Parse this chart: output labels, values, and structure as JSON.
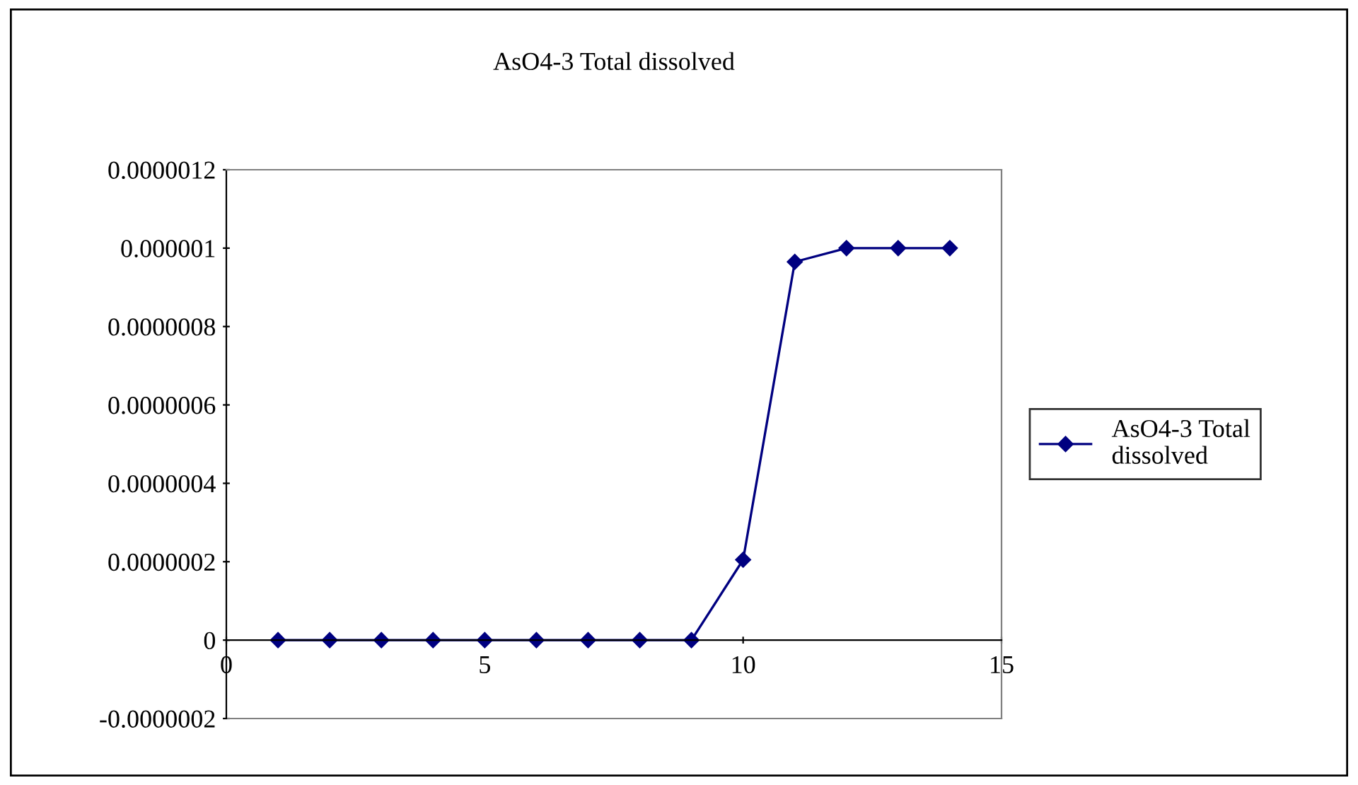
{
  "chart_data": {
    "type": "line",
    "title": "AsO4-3 Total dissolved",
    "x": [
      1,
      2,
      3,
      4,
      5,
      6,
      7,
      8,
      9,
      10,
      11,
      12,
      13,
      14
    ],
    "series": [
      {
        "name": "AsO4-3 Total dissolved",
        "color": "#000080",
        "values": [
          0,
          0,
          0,
          0,
          0,
          0,
          0,
          0,
          0,
          2.05e-07,
          9.65e-07,
          1e-06,
          1e-06,
          1e-06
        ]
      }
    ],
    "xlim": [
      0,
      15
    ],
    "xticks": [
      0,
      5,
      10,
      15
    ],
    "ylim": [
      -2e-07,
      1.2e-06
    ],
    "yticks": [
      {
        "value": -2e-07,
        "label": "-0.0000002"
      },
      {
        "value": 0,
        "label": "0"
      },
      {
        "value": 2e-07,
        "label": "0.0000002"
      },
      {
        "value": 4e-07,
        "label": "0.0000004"
      },
      {
        "value": 6e-07,
        "label": "0.0000006"
      },
      {
        "value": 8e-07,
        "label": "0.0000008"
      },
      {
        "value": 1e-06,
        "label": "0.000001"
      },
      {
        "value": 1.2e-06,
        "label": "0.0000012"
      }
    ],
    "marker": "diamond",
    "line_style": "solid",
    "grid": false,
    "legend": "right"
  }
}
